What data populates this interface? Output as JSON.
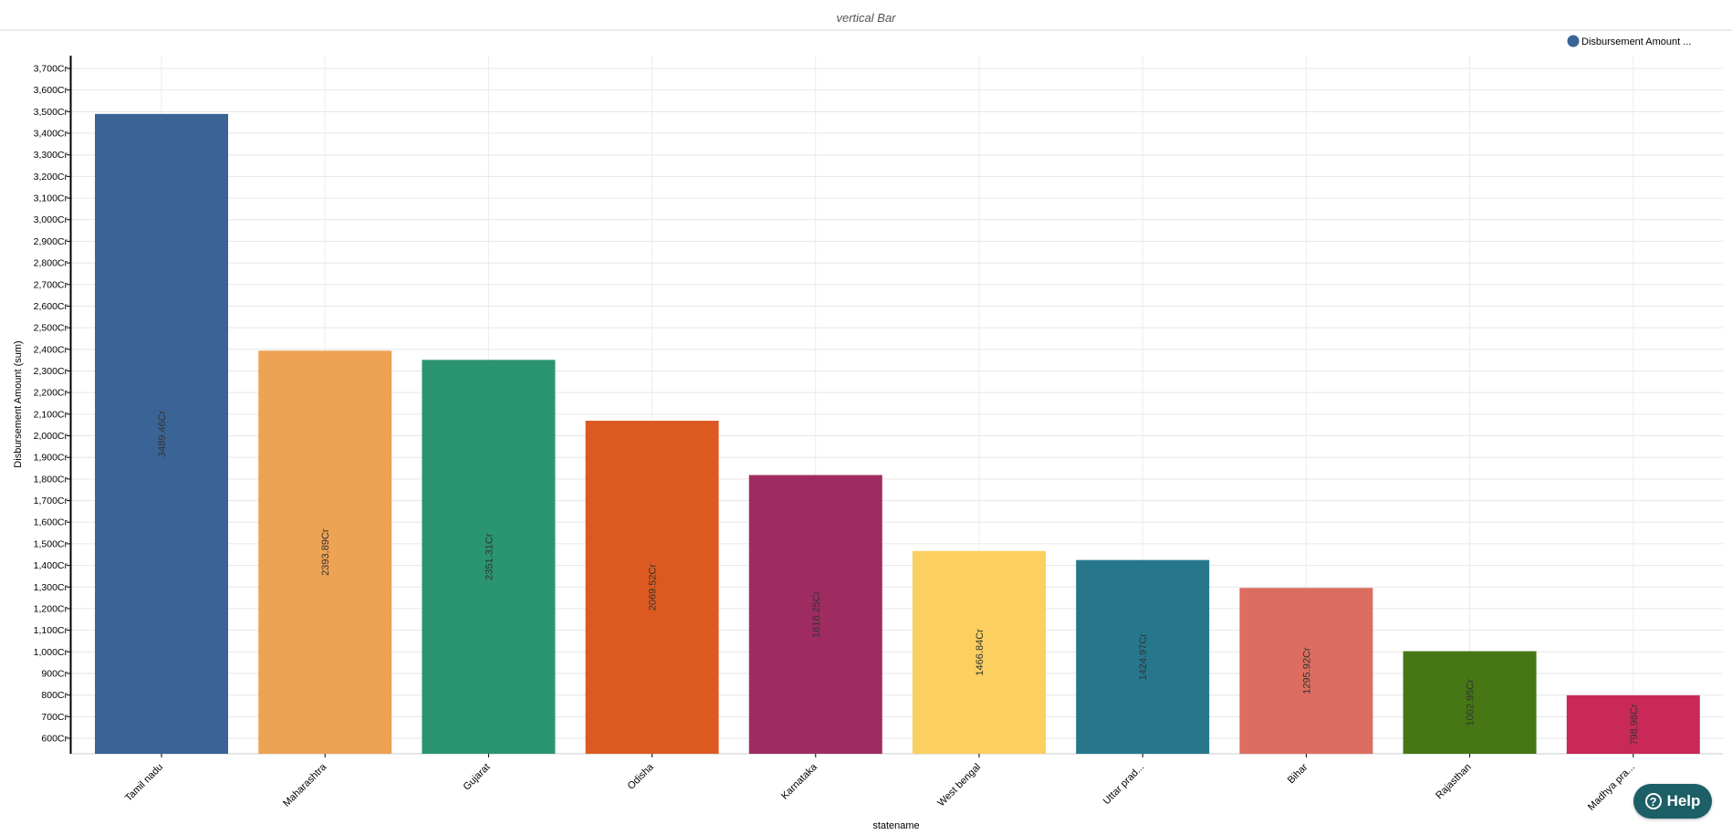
{
  "subtitle": "vertical Bar",
  "legend_label": "Disbursement Amount ...",
  "help_label": "Help",
  "help_icon": "?",
  "chart_data": {
    "type": "bar",
    "subtitle": "vertical Bar",
    "xlabel": "statename",
    "ylabel": "Disbursement Amount (sum)",
    "ylim": [
      500,
      3750
    ],
    "ytick_start": 600,
    "ytick_end": 3700,
    "ytick_step": 100,
    "ytick_suffix": "Cr",
    "legend_position": "top-right",
    "legend": [
      "Disbursement Amount ..."
    ],
    "grid": true,
    "categories": [
      "Tamil nadu",
      "Maharashtra",
      "Gujarat",
      "Odisha",
      "Karnataka",
      "West bengal",
      "Uttar prad...",
      "Bihar",
      "Rajasthan",
      "Madhya pra..."
    ],
    "values": [
      3489.46,
      2393.89,
      2351.31,
      2069.52,
      1818.25,
      1466.84,
      1424.97,
      1295.92,
      1002.95,
      798.98
    ],
    "data_labels": [
      "3489.46Cr",
      "2393.89Cr",
      "2351.31Cr",
      "2069.52Cr",
      "1818.25Cr",
      "1466.84Cr",
      "1424.97Cr",
      "1295.92Cr",
      "1002.95Cr",
      "798.98Cr"
    ],
    "colors": [
      "#3b6496",
      "#eea353",
      "#2b9470",
      "#dc5a22",
      "#9f2c61",
      "#fbcf60",
      "#26778c",
      "#db6e60",
      "#467714",
      "#c92958"
    ],
    "legend_color": "#3b6496"
  }
}
